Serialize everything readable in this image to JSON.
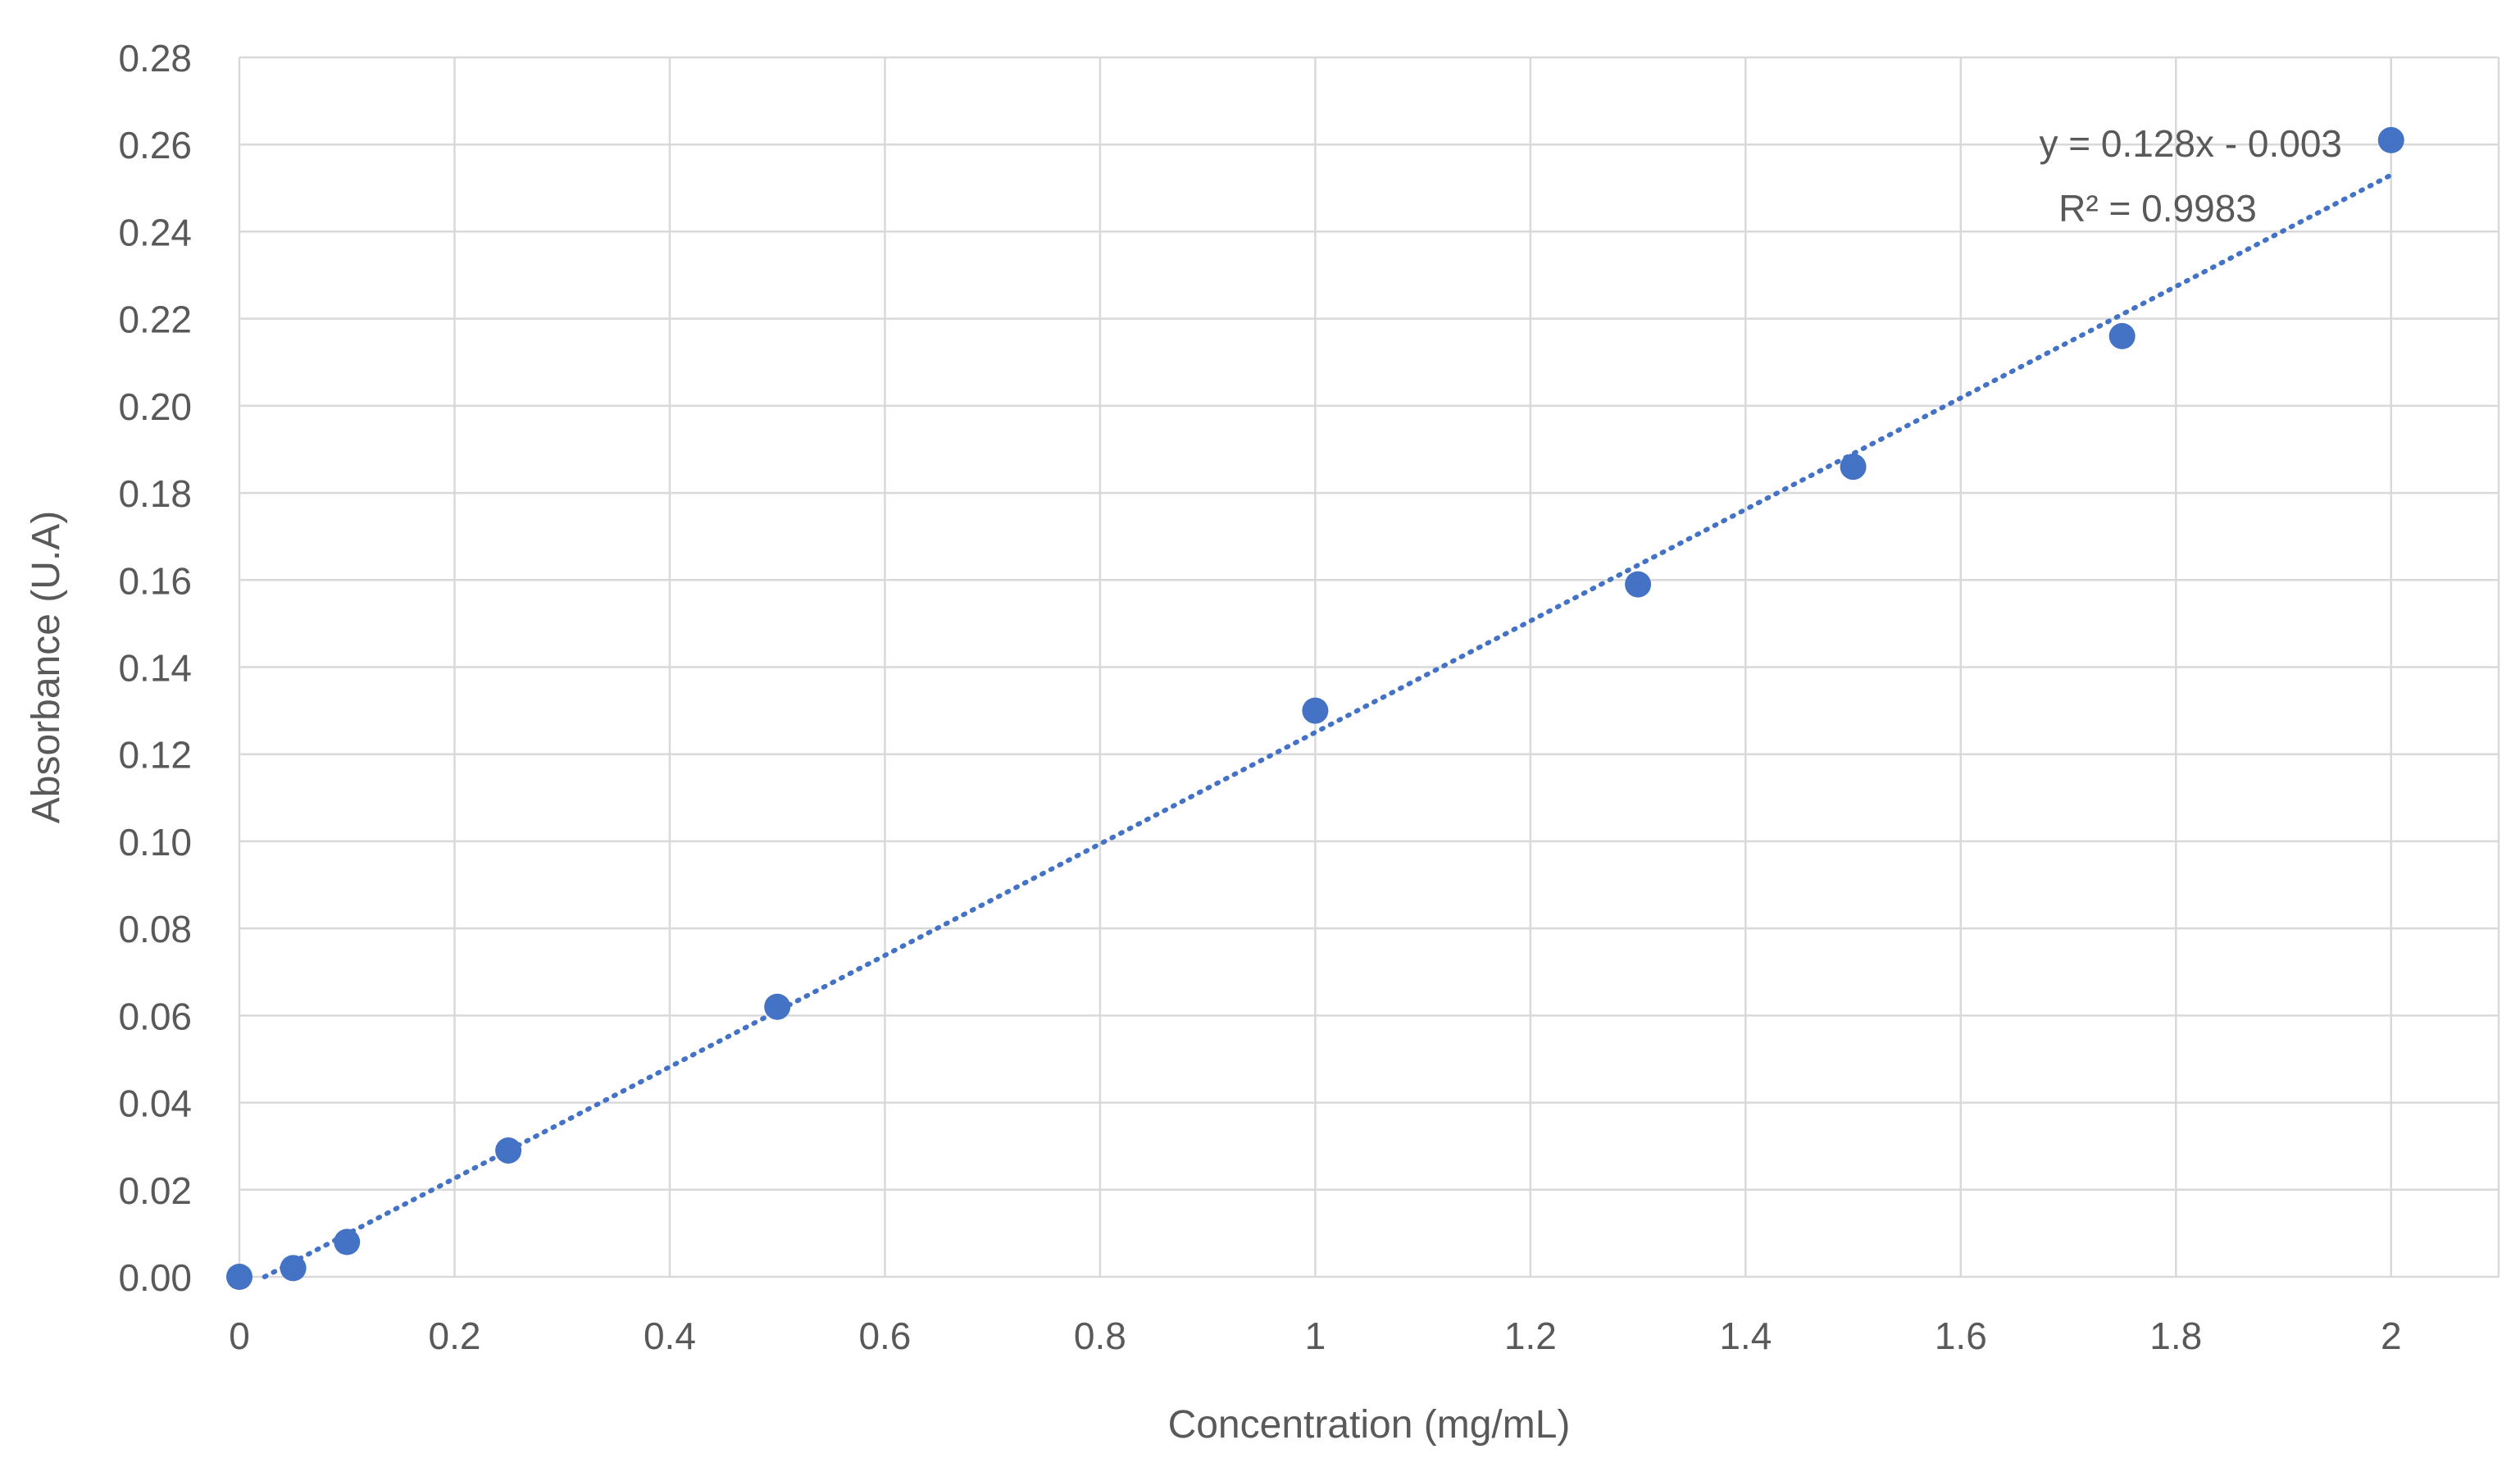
{
  "chart_data": {
    "type": "scatter",
    "title": "",
    "xlabel": "Concentration (mg/mL)",
    "ylabel": "Absorbance (U.A)",
    "xlim": [
      0,
      2.1
    ],
    "ylim": [
      0,
      0.28
    ],
    "x_ticks": [
      0,
      0.2,
      0.4,
      0.6,
      0.8,
      1,
      1.2,
      1.4,
      1.6,
      1.8,
      2
    ],
    "x_tick_labels": [
      "0",
      "0.2",
      "0.4",
      "0.6",
      "0.8",
      "1",
      "1.2",
      "1.4",
      "1.6",
      "1.8",
      "2"
    ],
    "y_ticks": [
      0,
      0.02,
      0.04,
      0.06,
      0.08,
      0.1,
      0.12,
      0.14,
      0.16,
      0.18,
      0.2,
      0.22,
      0.24,
      0.26,
      0.28
    ],
    "y_tick_labels": [
      "0.00",
      "0.02",
      "0.04",
      "0.06",
      "0.08",
      "0.10",
      "0.12",
      "0.14",
      "0.16",
      "0.18",
      "0.20",
      "0.22",
      "0.24",
      "0.26",
      "0.28"
    ],
    "grid": true,
    "series": [
      {
        "x": [
          0,
          0.05,
          0.1,
          0.25,
          0.5,
          1,
          1.3,
          1.5,
          1.75,
          2
        ],
        "y": [
          0.0,
          0.002,
          0.008,
          0.029,
          0.062,
          0.13,
          0.159,
          0.186,
          0.216,
          0.261
        ],
        "color": "#4472C4"
      }
    ],
    "trendline": {
      "type": "linear",
      "slope": 0.128,
      "intercept": -0.003,
      "x_range": [
        0,
        2
      ],
      "style": "dotted",
      "color": "#4472C4",
      "equation_label": "y = 0.128x - 0.003",
      "r2_label": "R² = 0.9983"
    },
    "colors": {
      "grid": "#d9d9d9",
      "text": "#595959",
      "marker": "#4472C4"
    }
  }
}
